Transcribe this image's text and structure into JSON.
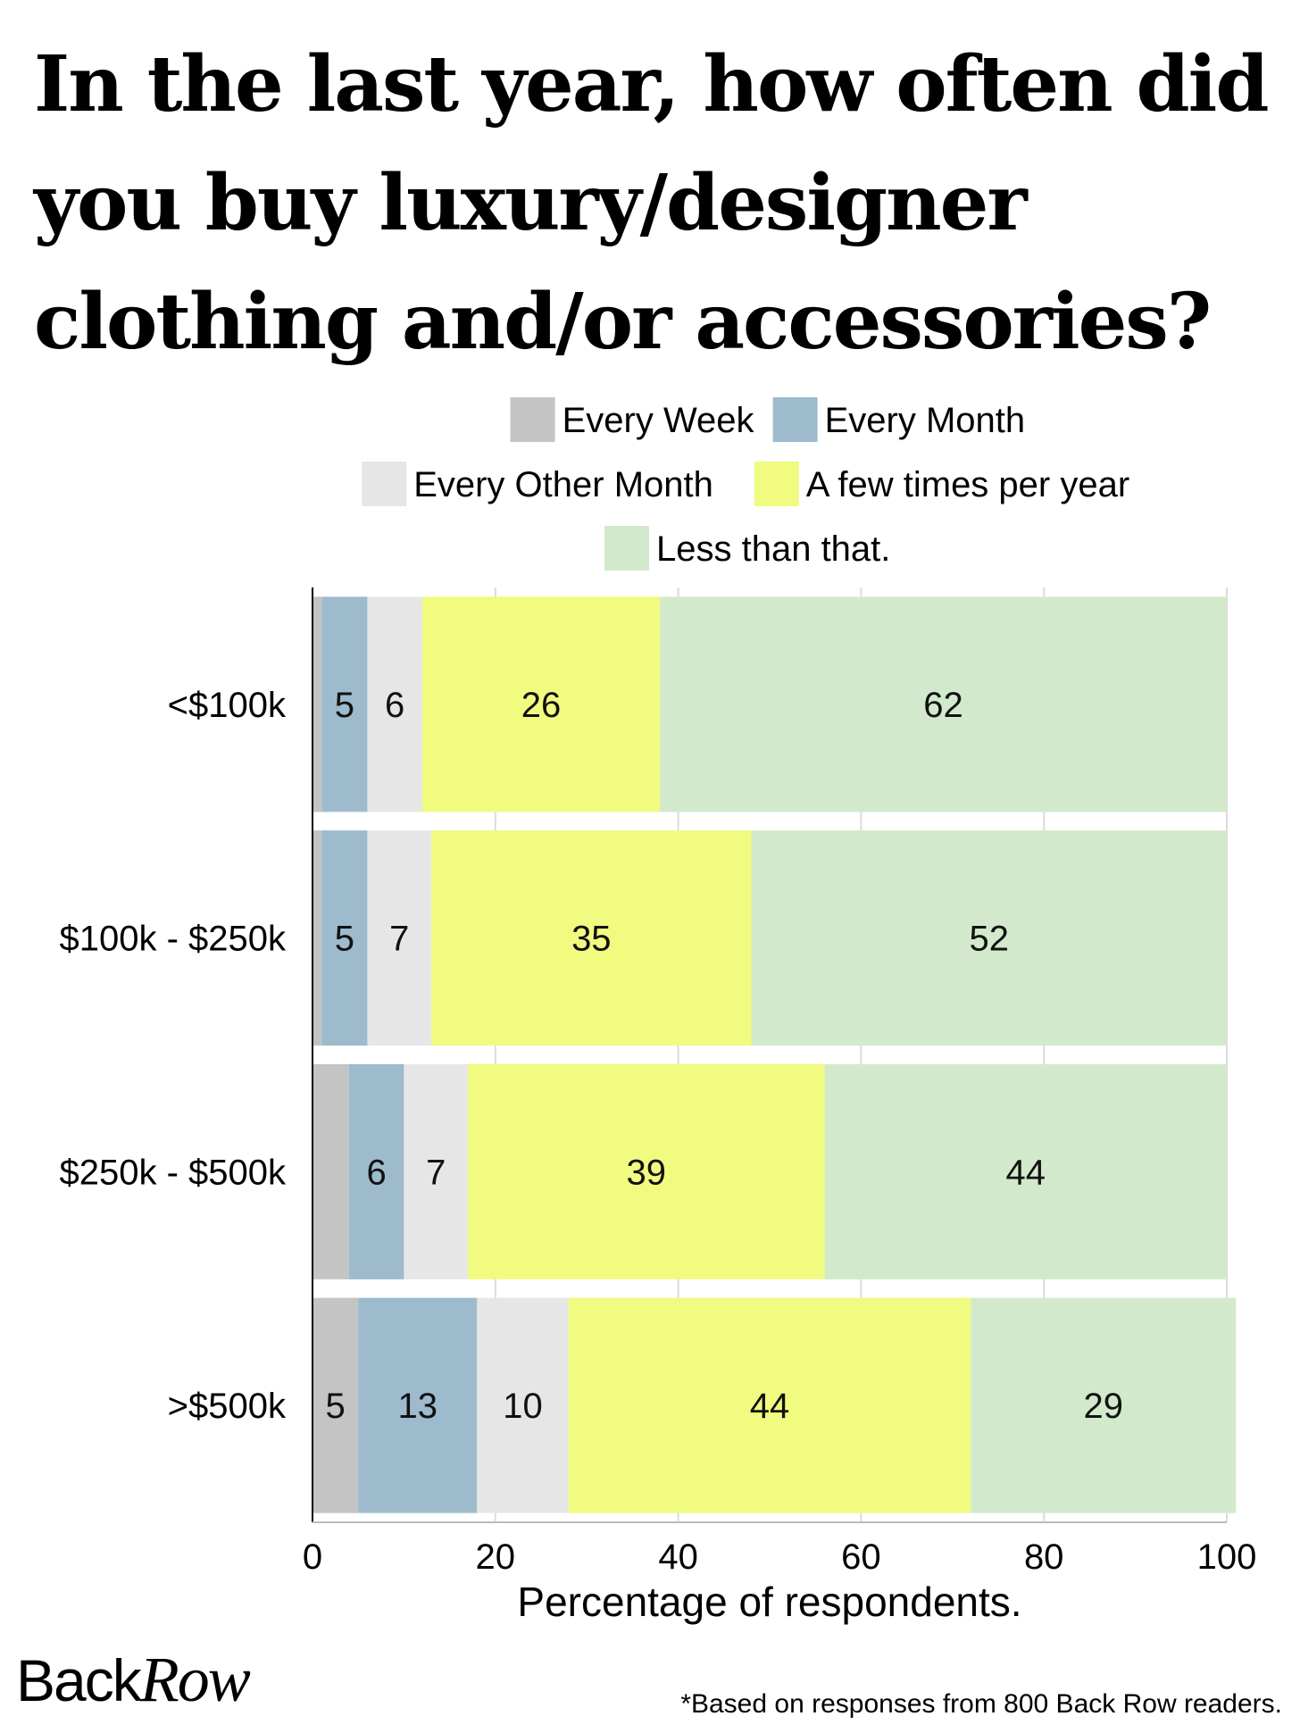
{
  "title": "In the last year, how often did you buy luxury/designer clothing and/or accessories?",
  "brand": {
    "part1": "Back",
    "part2": "Row"
  },
  "footnote": "*Based on responses from  800 Back Row readers.",
  "chart_data": {
    "type": "bar",
    "orientation": "horizontal",
    "stacked": true,
    "categories": [
      "<$100k",
      "$100k - $250k",
      "$250k - $500k",
      ">$500k"
    ],
    "series": [
      {
        "name": "Every Week",
        "color": "#c4c4c4",
        "values": [
          1,
          1,
          4,
          5
        ],
        "labels": [
          "",
          "",
          "",
          "5"
        ]
      },
      {
        "name": "Every Month",
        "color": "#9dbbcc",
        "values": [
          5,
          5,
          6,
          13
        ],
        "labels": [
          "5",
          "5",
          "6",
          "13"
        ]
      },
      {
        "name": "Every Other Month",
        "color": "#e6e6e6",
        "values": [
          6,
          7,
          7,
          10
        ],
        "labels": [
          "6",
          "7",
          "7",
          "10"
        ]
      },
      {
        "name": "A few times per year",
        "color": "#f0fb80",
        "values": [
          26,
          35,
          39,
          44
        ],
        "labels": [
          "26",
          "35",
          "39",
          "44"
        ]
      },
      {
        "name": "Less than that.",
        "color": "#d2eacb",
        "values": [
          62,
          52,
          44,
          29
        ],
        "labels": [
          "62",
          "52",
          "44",
          "29"
        ]
      }
    ],
    "xlabel": "Percentage of respondents.",
    "xlim": [
      0,
      100
    ],
    "xticks": [
      0,
      20,
      40,
      60,
      80,
      100
    ],
    "grid": "vertical",
    "legend_position": "top"
  }
}
